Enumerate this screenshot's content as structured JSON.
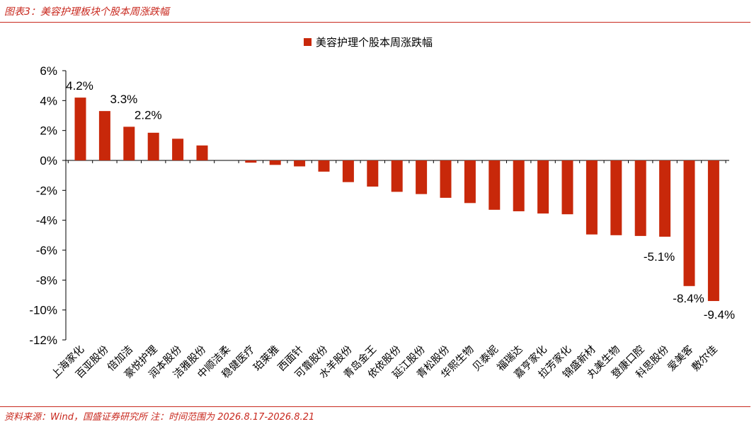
{
  "header": {
    "title": "图表3：美容护理板块个股本周涨跌幅"
  },
  "footer": {
    "source": "资料来源：Wind，国盛证券研究所 注：时间范围为 2026.8.17-2026.8.21"
  },
  "chart_data": {
    "type": "bar",
    "legend": "美容护理个股本周涨跌幅",
    "legend_position": "top-center",
    "bar_color": "#c8280a",
    "ylim": [
      -12,
      6
    ],
    "yticks": [
      6,
      4,
      2,
      0,
      -2,
      -4,
      -6,
      -8,
      -10,
      -12
    ],
    "ytick_labels": [
      "6%",
      "4%",
      "2%",
      "0%",
      "-2%",
      "-4%",
      "-6%",
      "-8%",
      "-10%",
      "-12%"
    ],
    "grid": false,
    "categories": [
      "上海家化",
      "百亚股份",
      "倍加洁",
      "豪悦护理",
      "润本股份",
      "洁雅股份",
      "中顺洁柔",
      "稳健医疗",
      "珀莱雅",
      "西面针",
      "可靠股份",
      "水羊股份",
      "青岛金王",
      "依依股份",
      "延江股份",
      "青松股份",
      "华熙生物",
      "贝泰妮",
      "福瑞达",
      "嘉亨家化",
      "拉芳家化",
      "锦盛新材",
      "丸美生物",
      "登康口腔",
      "科思股份",
      "爱美客",
      "敷尔佳"
    ],
    "values": [
      4.2,
      3.3,
      2.25,
      1.85,
      1.45,
      1.0,
      0,
      -0.15,
      -0.3,
      -0.4,
      -0.75,
      -1.45,
      -1.75,
      -2.1,
      -2.25,
      -2.5,
      -2.85,
      -3.3,
      -3.4,
      -3.55,
      -3.6,
      -4.95,
      -5.0,
      -5.05,
      -5.1,
      -8.4,
      -9.4
    ],
    "data_labels": [
      {
        "index": 0,
        "text": "4.2%"
      },
      {
        "index": 1,
        "text": "3.3%"
      },
      {
        "index": 2,
        "text": "2.2%"
      },
      {
        "index": 24,
        "text": "-5.1%"
      },
      {
        "index": 25,
        "text": "-8.4%"
      },
      {
        "index": 26,
        "text": "-9.4%"
      }
    ]
  }
}
